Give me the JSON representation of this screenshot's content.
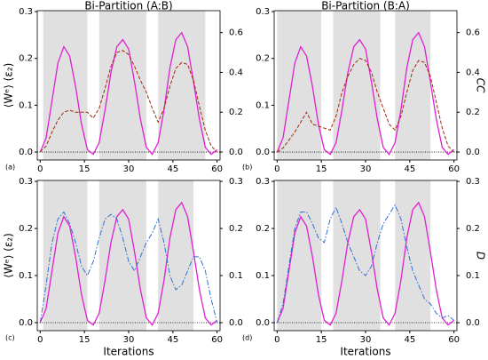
{
  "chart_data": [
    {
      "type": "line",
      "title": "Bi-Partition (A:B)",
      "panel_label": "(a)",
      "ylabel": "⟨Wᵉ⟩ (ε₂)",
      "x": [
        0,
        2,
        4,
        6,
        8,
        10,
        12,
        14,
        16,
        18,
        20,
        22,
        24,
        26,
        28,
        30,
        32,
        34,
        36,
        38,
        40,
        42,
        44,
        46,
        48,
        50,
        52,
        54,
        56,
        58,
        60
      ],
      "xlim": [
        -1,
        61
      ],
      "xticks": [
        0,
        15,
        30,
        45,
        60
      ],
      "ylim": [
        -0.017,
        0.302
      ],
      "yticks": [
        {
          "value": 0,
          "label": "0.0"
        },
        {
          "value": 0.1,
          "label": "0.1"
        },
        {
          "value": 0.2,
          "label": "0.2"
        },
        {
          "value": 0.3,
          "label": "0.3"
        }
      ],
      "y2lim": [
        -0.04,
        0.71
      ],
      "y2ticks": [
        {
          "value": 0,
          "label": "0.0"
        },
        {
          "value": 0.2,
          "label": "0.2"
        },
        {
          "value": 0.4,
          "label": "0.4"
        },
        {
          "value": 0.6,
          "label": "0.6"
        }
      ],
      "shaded_regions": [
        [
          1,
          16
        ],
        [
          20,
          36
        ],
        [
          40,
          56
        ]
      ],
      "shade_color": "#e0e0e0",
      "zero_line": true,
      "series": [
        {
          "color": "#e020d0",
          "style": "solid",
          "values": [
            0,
            0.03,
            0.11,
            0.19,
            0.225,
            0.205,
            0.14,
            0.06,
            0.005,
            -0.005,
            0.02,
            0.09,
            0.17,
            0.225,
            0.24,
            0.22,
            0.15,
            0.07,
            0.01,
            -0.005,
            0.02,
            0.09,
            0.18,
            0.24,
            0.255,
            0.225,
            0.15,
            0.07,
            0.01,
            -0.005,
            0.005
          ]
        },
        {
          "color": "#a02810",
          "style": "dashed",
          "axis": "y2",
          "values": [
            0,
            0.03,
            0.1,
            0.16,
            0.2,
            0.21,
            0.2,
            0.2,
            0.2,
            0.17,
            0.22,
            0.32,
            0.43,
            0.5,
            0.51,
            0.49,
            0.43,
            0.36,
            0.3,
            0.22,
            0.15,
            0.22,
            0.33,
            0.42,
            0.45,
            0.44,
            0.36,
            0.23,
            0.11,
            0.03,
            0
          ]
        }
      ]
    },
    {
      "type": "line",
      "title": "Bi-Partition (B:A)",
      "panel_label": "(b)",
      "y2label": "CC",
      "x": [
        0,
        2,
        4,
        6,
        8,
        10,
        12,
        14,
        16,
        18,
        20,
        22,
        24,
        26,
        28,
        30,
        32,
        34,
        36,
        38,
        40,
        42,
        44,
        46,
        48,
        50,
        52,
        54,
        56,
        58,
        60
      ],
      "xlim": [
        -1,
        61
      ],
      "xticks": [
        0,
        15,
        30,
        45,
        60
      ],
      "ylim": [
        -0.017,
        0.302
      ],
      "yticks": [
        {
          "value": 0,
          "label": "0.0"
        },
        {
          "value": 0.1,
          "label": "0.1"
        },
        {
          "value": 0.2,
          "label": "0.2"
        },
        {
          "value": 0.3,
          "label": "0.3"
        }
      ],
      "y2lim": [
        -0.04,
        0.71
      ],
      "y2ticks": [
        {
          "value": 0,
          "label": "0.0"
        },
        {
          "value": 0.2,
          "label": "0.2"
        },
        {
          "value": 0.4,
          "label": "0.4"
        },
        {
          "value": 0.6,
          "label": "0.6"
        }
      ],
      "shaded_regions": [
        [
          0,
          15
        ],
        [
          19,
          35
        ],
        [
          40,
          52
        ]
      ],
      "shade_color": "#e0e0e0",
      "zero_line": true,
      "series": [
        {
          "color": "#e020d0",
          "style": "solid",
          "values": [
            0,
            0.03,
            0.11,
            0.19,
            0.225,
            0.205,
            0.14,
            0.06,
            0.005,
            -0.005,
            0.02,
            0.09,
            0.17,
            0.225,
            0.24,
            0.22,
            0.15,
            0.07,
            0.01,
            -0.005,
            0.02,
            0.09,
            0.18,
            0.24,
            0.255,
            0.225,
            0.15,
            0.07,
            0.01,
            -0.005,
            0.005
          ]
        },
        {
          "color": "#a02810",
          "style": "dashed",
          "axis": "y2",
          "values": [
            0,
            0.02,
            0.06,
            0.1,
            0.15,
            0.2,
            0.14,
            0.13,
            0.12,
            0.11,
            0.18,
            0.3,
            0.38,
            0.44,
            0.47,
            0.46,
            0.4,
            0.3,
            0.22,
            0.14,
            0.11,
            0.18,
            0.3,
            0.41,
            0.46,
            0.45,
            0.38,
            0.25,
            0.12,
            0.03,
            0
          ]
        }
      ]
    },
    {
      "type": "line",
      "panel_label": "(c)",
      "ylabel": "⟨Wᵉ⟩ (ε₂)",
      "xlabel": "Iterations",
      "x": [
        0,
        2,
        4,
        6,
        8,
        10,
        12,
        14,
        16,
        18,
        20,
        22,
        24,
        26,
        28,
        30,
        32,
        34,
        36,
        38,
        40,
        42,
        44,
        46,
        48,
        50,
        52,
        54,
        56,
        58,
        60
      ],
      "xlim": [
        -1,
        61
      ],
      "xticks": [
        0,
        15,
        30,
        45,
        60
      ],
      "ylim": [
        -0.017,
        0.302
      ],
      "yticks": [
        {
          "value": 0,
          "label": "0.0"
        },
        {
          "value": 0.1,
          "label": "0.1"
        },
        {
          "value": 0.2,
          "label": "0.2"
        },
        {
          "value": 0.3,
          "label": "0.3"
        }
      ],
      "y2lim": [
        -0.017,
        0.302
      ],
      "y2ticks": [
        {
          "value": 0,
          "label": "0.0"
        },
        {
          "value": 0.1,
          "label": "0.1"
        },
        {
          "value": 0.2,
          "label": "0.2"
        },
        {
          "value": 0.3,
          "label": "0.3"
        }
      ],
      "shaded_regions": [
        [
          1,
          16
        ],
        [
          20,
          36
        ],
        [
          40,
          52
        ]
      ],
      "shade_color": "#e0e0e0",
      "zero_line": true,
      "series": [
        {
          "color": "#e020d0",
          "style": "solid",
          "values": [
            0,
            0.03,
            0.11,
            0.19,
            0.225,
            0.205,
            0.14,
            0.06,
            0.005,
            -0.005,
            0.02,
            0.09,
            0.17,
            0.225,
            0.24,
            0.22,
            0.15,
            0.07,
            0.01,
            -0.005,
            0.02,
            0.09,
            0.18,
            0.24,
            0.255,
            0.225,
            0.15,
            0.07,
            0.01,
            -0.005,
            0.005
          ]
        },
        {
          "color": "#3070d0",
          "style": "dashdot",
          "axis": "y2",
          "values": [
            0,
            0.08,
            0.17,
            0.22,
            0.235,
            0.21,
            0.17,
            0.12,
            0.1,
            0.13,
            0.18,
            0.22,
            0.23,
            0.22,
            0.18,
            0.13,
            0.11,
            0.14,
            0.17,
            0.19,
            0.22,
            0.17,
            0.1,
            0.07,
            0.08,
            0.11,
            0.14,
            0.14,
            0.11,
            0.05,
            0
          ]
        }
      ]
    },
    {
      "type": "line",
      "panel_label": "(d)",
      "y2label": "D",
      "xlabel": "Iterations",
      "x": [
        0,
        2,
        4,
        6,
        8,
        10,
        12,
        14,
        16,
        18,
        20,
        22,
        24,
        26,
        28,
        30,
        32,
        34,
        36,
        38,
        40,
        42,
        44,
        46,
        48,
        50,
        52,
        54,
        56,
        58,
        60
      ],
      "xlim": [
        -1,
        61
      ],
      "xticks": [
        0,
        15,
        30,
        45,
        60
      ],
      "ylim": [
        -0.017,
        0.302
      ],
      "yticks": [
        {
          "value": 0,
          "label": "0.0"
        },
        {
          "value": 0.1,
          "label": "0.1"
        },
        {
          "value": 0.2,
          "label": "0.2"
        },
        {
          "value": 0.3,
          "label": "0.3"
        }
      ],
      "y2lim": [
        -0.017,
        0.302
      ],
      "y2ticks": [
        {
          "value": 0,
          "label": "0.0"
        },
        {
          "value": 0.1,
          "label": "0.1"
        },
        {
          "value": 0.2,
          "label": "0.2"
        },
        {
          "value": 0.3,
          "label": "0.3"
        }
      ],
      "shaded_regions": [
        [
          0,
          15
        ],
        [
          19,
          35
        ],
        [
          40,
          52
        ]
      ],
      "shade_color": "#e0e0e0",
      "zero_line": true,
      "series": [
        {
          "color": "#e020d0",
          "style": "solid",
          "values": [
            0,
            0.03,
            0.11,
            0.19,
            0.225,
            0.205,
            0.14,
            0.06,
            0.005,
            -0.005,
            0.02,
            0.09,
            0.17,
            0.225,
            0.24,
            0.22,
            0.15,
            0.07,
            0.01,
            -0.005,
            0.02,
            0.09,
            0.18,
            0.24,
            0.255,
            0.225,
            0.15,
            0.07,
            0.01,
            -0.005,
            0.005
          ]
        },
        {
          "color": "#3070d0",
          "style": "dashdot",
          "axis": "y2",
          "values": [
            0,
            0.04,
            0.12,
            0.2,
            0.235,
            0.235,
            0.21,
            0.18,
            0.17,
            0.22,
            0.245,
            0.21,
            0.17,
            0.14,
            0.11,
            0.1,
            0.12,
            0.17,
            0.21,
            0.23,
            0.25,
            0.22,
            0.16,
            0.11,
            0.08,
            0.05,
            0.04,
            0.02,
            0.01,
            0.015,
            0.005
          ]
        }
      ]
    }
  ]
}
